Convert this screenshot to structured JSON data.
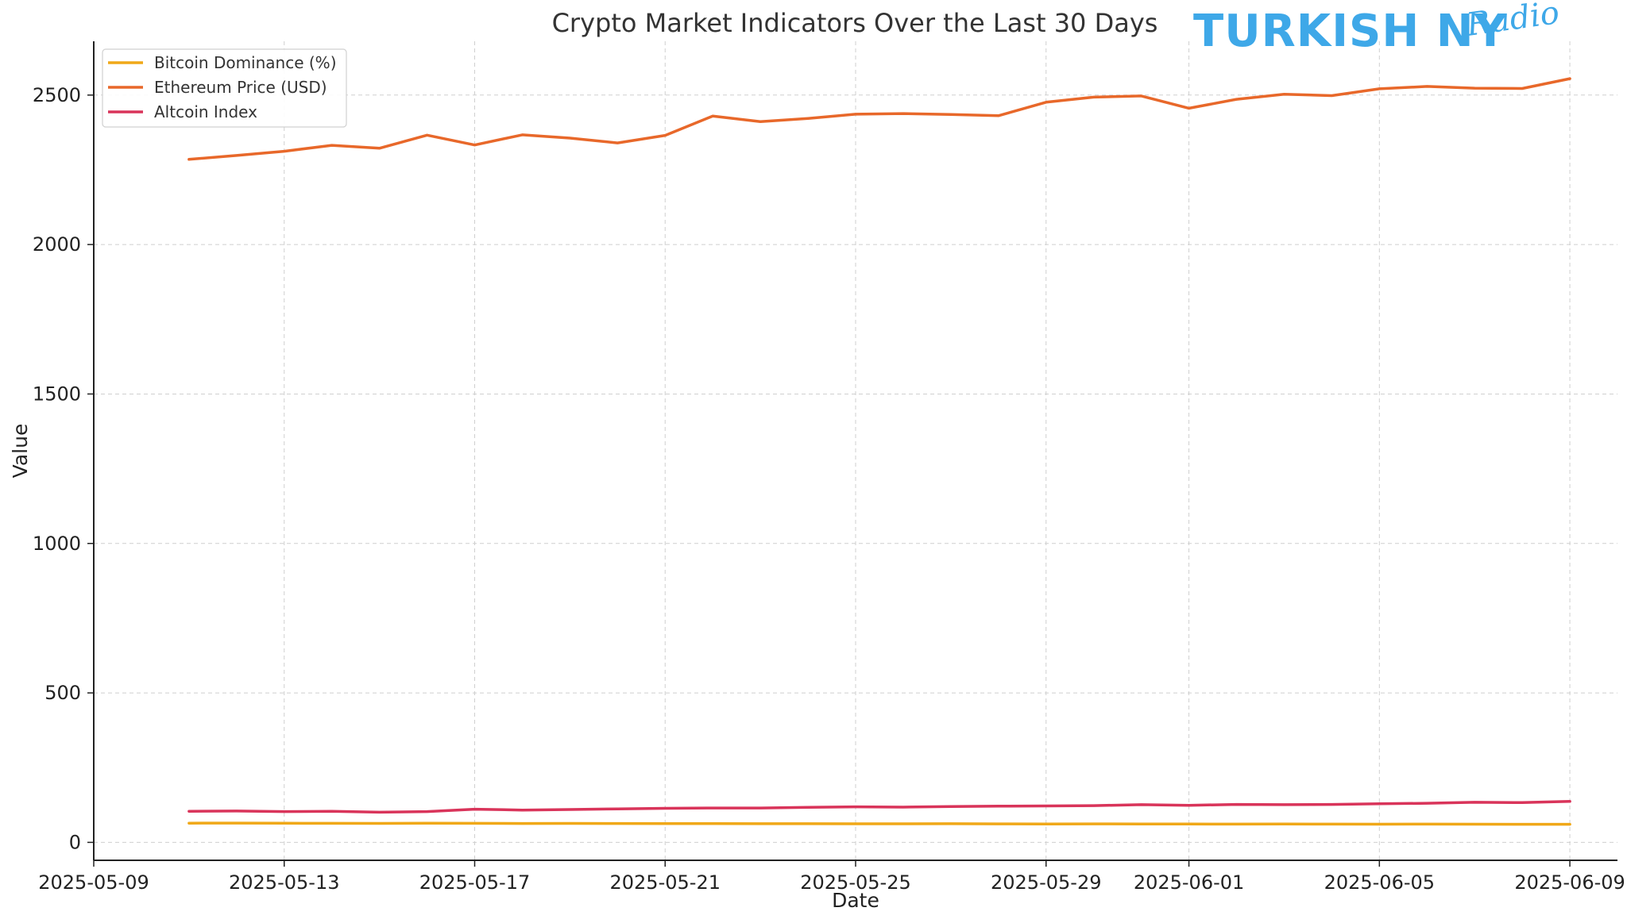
{
  "chart_data": {
    "type": "line",
    "title": "Crypto Market Indicators Over the Last 30 Days",
    "xlabel": "Date",
    "ylabel": "Value",
    "x": [
      "2025-05-11",
      "2025-05-12",
      "2025-05-13",
      "2025-05-14",
      "2025-05-15",
      "2025-05-16",
      "2025-05-17",
      "2025-05-18",
      "2025-05-19",
      "2025-05-20",
      "2025-05-21",
      "2025-05-22",
      "2025-05-23",
      "2025-05-24",
      "2025-05-25",
      "2025-05-26",
      "2025-05-27",
      "2025-05-28",
      "2025-05-29",
      "2025-05-30",
      "2025-05-31",
      "2025-06-01",
      "2025-06-02",
      "2025-06-03",
      "2025-06-04",
      "2025-06-05",
      "2025-06-06",
      "2025-06-07",
      "2025-06-08",
      "2025-06-09"
    ],
    "xlim": [
      "2025-05-09",
      "2025-06-10"
    ],
    "ylim": [
      -60,
      2680
    ],
    "x_ticks": [
      "2025-05-09",
      "2025-05-13",
      "2025-05-17",
      "2025-05-21",
      "2025-05-25",
      "2025-05-29",
      "2025-06-01",
      "2025-06-05",
      "2025-06-09"
    ],
    "y_ticks": [
      0,
      500,
      1000,
      1500,
      2000,
      2500
    ],
    "grid": true,
    "legend_position": "top-left",
    "series": [
      {
        "name": "Bitcoin Dominance (%)",
        "color": "#f0a818",
        "values": [
          64.2,
          64.5,
          64.0,
          63.8,
          63.5,
          63.9,
          63.6,
          63.2,
          63.4,
          63.1,
          62.8,
          62.6,
          62.4,
          62.5,
          62.2,
          62.0,
          62.3,
          61.9,
          61.7,
          61.9,
          61.6,
          61.4,
          61.2,
          61.5,
          61.1,
          60.9,
          61.0,
          60.8,
          60.6,
          60.5
        ]
      },
      {
        "name": "Ethereum Price (USD)",
        "color": "#e8682a",
        "values": [
          2285,
          2298,
          2312,
          2332,
          2322,
          2366,
          2333,
          2367,
          2356,
          2340,
          2365,
          2430,
          2411,
          2422,
          2436,
          2438,
          2435,
          2431,
          2476,
          2493,
          2497,
          2456,
          2486,
          2503,
          2498,
          2521,
          2529,
          2523,
          2522,
          2555
        ]
      },
      {
        "name": "Altcoin Index",
        "color": "#d9345a",
        "values": [
          104,
          105,
          103,
          104,
          101,
          103,
          111,
          108,
          110,
          112,
          114,
          115,
          115,
          117,
          119,
          118,
          120,
          121,
          122,
          123,
          126,
          124,
          127,
          126,
          127,
          129,
          131,
          134,
          133,
          137
        ]
      }
    ]
  },
  "watermark": {
    "text_main": "TURKISH NY",
    "text_script": "Radio"
  }
}
